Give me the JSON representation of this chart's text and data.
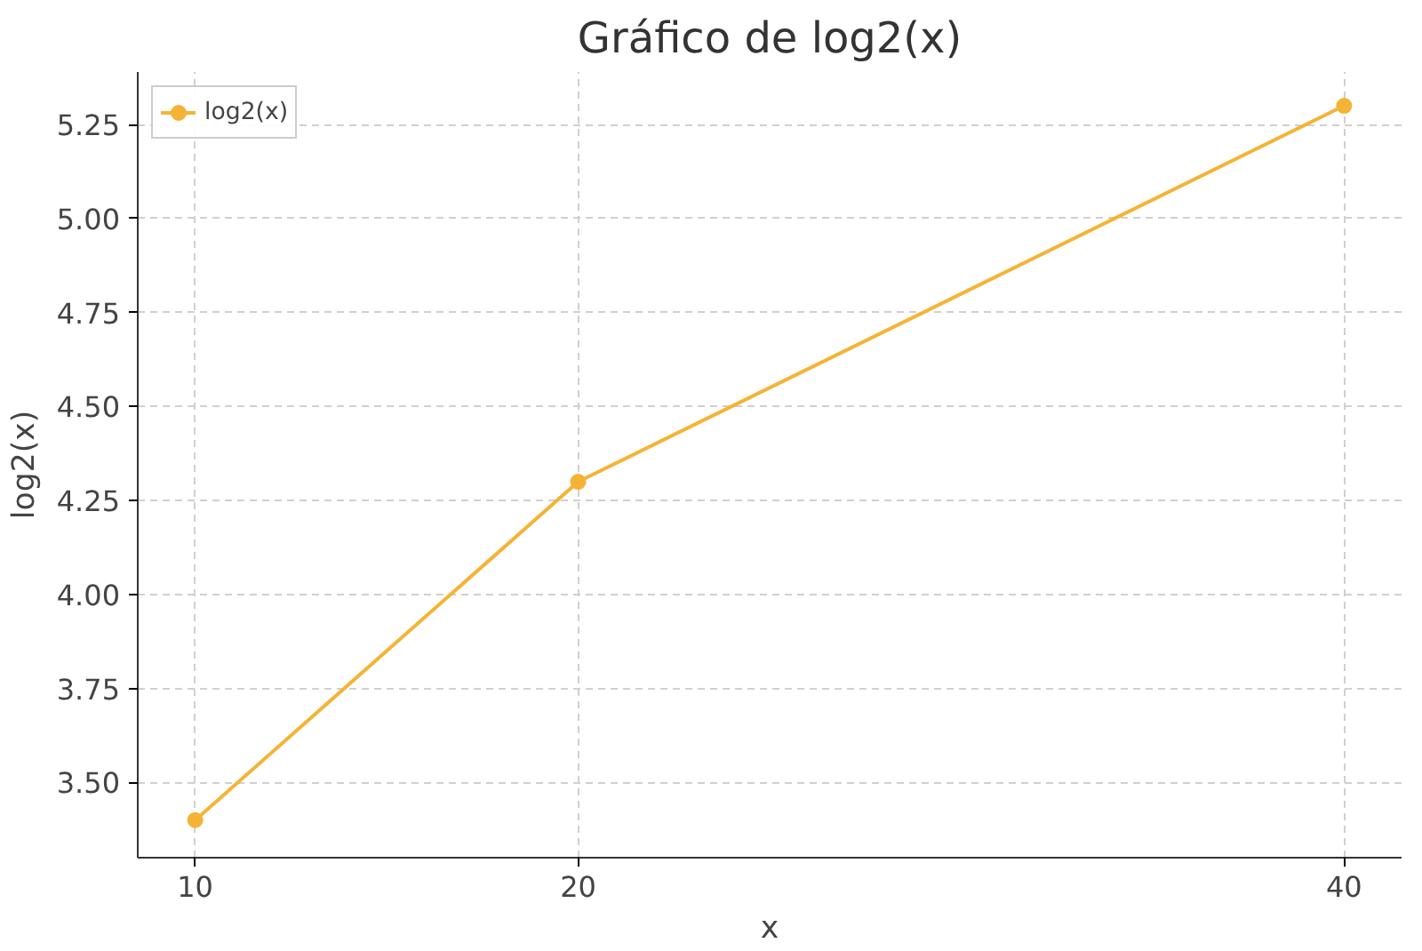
{
  "chart_data": {
    "type": "line",
    "title": "Gráfico de log2(x)",
    "xlabel": "x",
    "ylabel": "log2(x)",
    "x": [
      10,
      20,
      40
    ],
    "series": [
      {
        "name": "log2(x)",
        "color": "#f5b335",
        "values": [
          3.4,
          4.3,
          5.3
        ]
      }
    ],
    "xlim": [
      8.5,
      41.5
    ],
    "xticks": [
      10,
      20,
      40
    ],
    "ylim": [
      3.3,
      5.39
    ],
    "yticks": [
      {
        "value": 3.5,
        "label": "3.50"
      },
      {
        "value": 3.75,
        "label": "3.75"
      },
      {
        "value": 4.0,
        "label": "4.00"
      },
      {
        "value": 4.25,
        "label": "4.25"
      },
      {
        "value": 4.5,
        "label": "4.50"
      },
      {
        "value": 4.75,
        "label": "4.75"
      },
      {
        "value": 5.0,
        "label": "5.00"
      },
      {
        "value": 5.25,
        "label": "5.25"
      }
    ],
    "grid": true,
    "legend": "top left",
    "marker": "circle",
    "line_style": "solid"
  }
}
